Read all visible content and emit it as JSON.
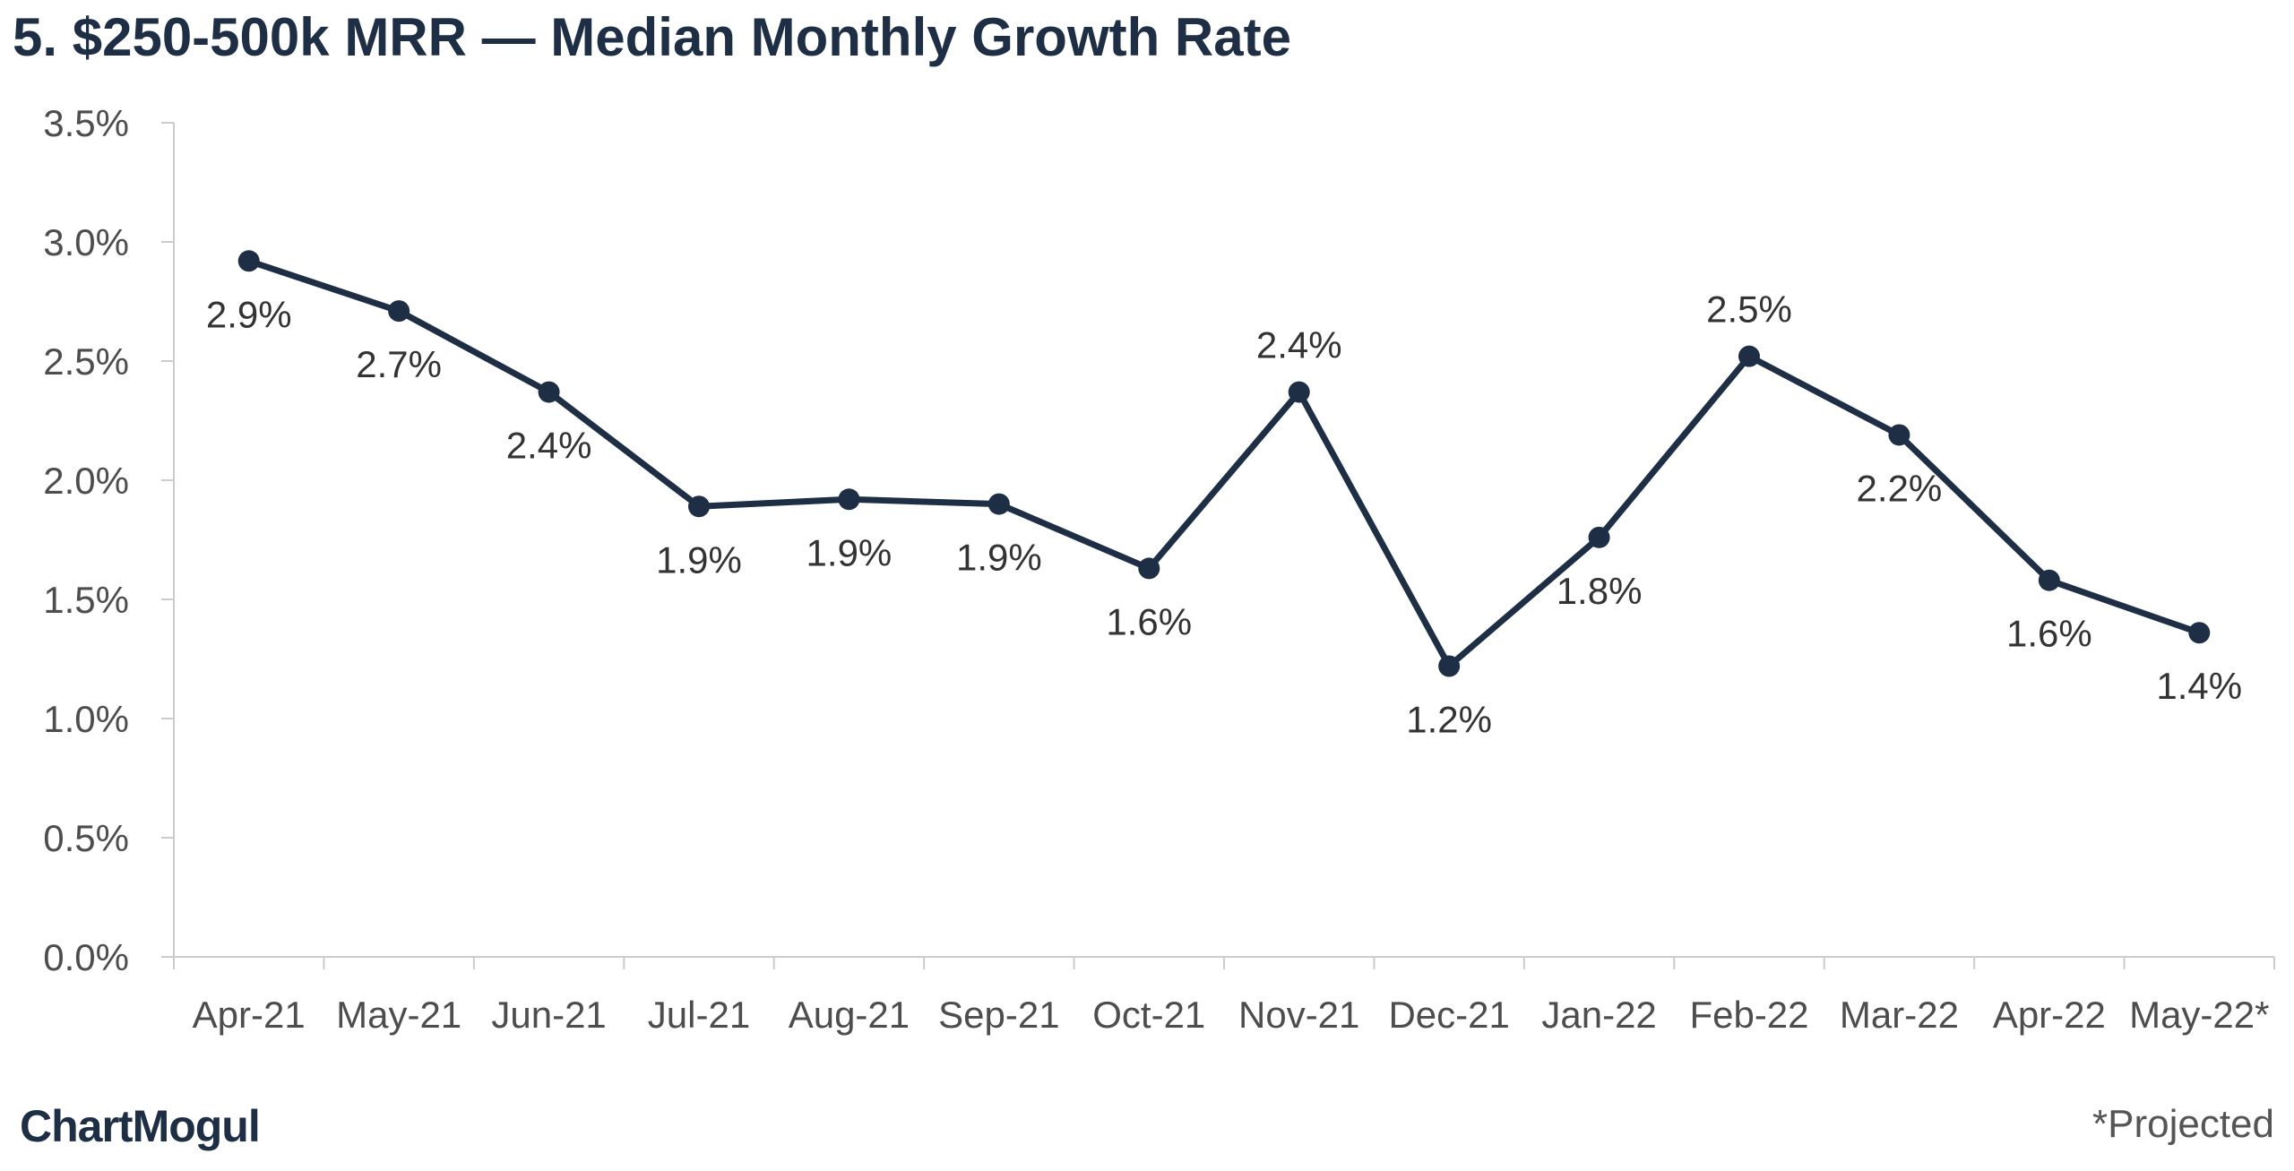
{
  "header": {
    "title": "5. $250-500k MRR — Median Monthly Growth Rate"
  },
  "footer": {
    "brand": "ChartMogul",
    "footnote": "*Projected"
  },
  "colors": {
    "series": "#1e2f45",
    "axis": "#cccccc",
    "tick_text": "#4d4d4d",
    "label_text": "#333333"
  },
  "chart_data": {
    "type": "line",
    "title": "5. $250-500k MRR — Median Monthly Growth Rate",
    "xlabel": "",
    "ylabel": "",
    "categories": [
      "Apr-21",
      "May-21",
      "Jun-21",
      "Jul-21",
      "Aug-21",
      "Sep-21",
      "Oct-21",
      "Nov-21",
      "Dec-21",
      "Jan-22",
      "Feb-22",
      "Mar-22",
      "Apr-22",
      "May-22*"
    ],
    "series": [
      {
        "values": [
          2.92,
          2.71,
          2.37,
          1.89,
          1.92,
          1.9,
          1.63,
          2.37,
          1.22,
          1.76,
          2.52,
          2.19,
          1.58,
          1.36
        ],
        "labels": [
          "2.9%",
          "2.7%",
          "2.4%",
          "1.9%",
          "1.9%",
          "1.9%",
          "1.6%",
          "2.4%",
          "1.2%",
          "1.8%",
          "2.5%",
          "2.2%",
          "1.6%",
          "1.4%"
        ],
        "label_positions": [
          "below",
          "below",
          "below",
          "below",
          "below",
          "below",
          "below",
          "above",
          "below",
          "below",
          "above",
          "below",
          "below",
          "below"
        ]
      }
    ],
    "ylim": [
      0,
      3.5
    ],
    "y_ticks": [
      0,
      0.5,
      1.0,
      1.5,
      2.0,
      2.5,
      3.0,
      3.5
    ],
    "y_tick_labels": [
      "0.0%",
      "0.5%",
      "1.0%",
      "1.5%",
      "2.0%",
      "2.5%",
      "3.0%",
      "3.5%"
    ],
    "grid": false,
    "legend": "none"
  }
}
